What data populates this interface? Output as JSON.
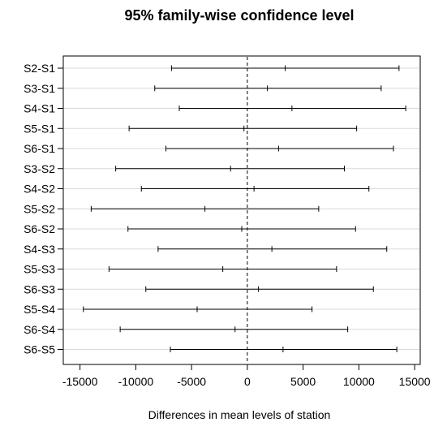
{
  "chart_data": {
    "type": "interval",
    "title": "95% family-wise confidence level",
    "xlabel": "Differences in mean levels of station",
    "ylabel": "",
    "xlim": [
      -16500,
      15500
    ],
    "xticks": [
      -15000,
      -10000,
      -5000,
      0,
      5000,
      10000,
      15000
    ],
    "xtick_labels": [
      "-15000",
      "-10000",
      "-5000",
      "0",
      "5000",
      "10000",
      "15000"
    ],
    "reference_line": 0,
    "grid": true,
    "comparisons": [
      {
        "label": "S2-S1",
        "lwr": -6800,
        "diff": 3400,
        "upr": 13600
      },
      {
        "label": "S3-S1",
        "lwr": -8300,
        "diff": 1800,
        "upr": 12000
      },
      {
        "label": "S4-S1",
        "lwr": -6100,
        "diff": 4000,
        "upr": 14200
      },
      {
        "label": "S5-S1",
        "lwr": -10600,
        "diff": -300,
        "upr": 9800
      },
      {
        "label": "S6-S1",
        "lwr": -7300,
        "diff": 2800,
        "upr": 13100
      },
      {
        "label": "S3-S2",
        "lwr": -11800,
        "diff": -1500,
        "upr": 8700
      },
      {
        "label": "S4-S2",
        "lwr": -9500,
        "diff": 600,
        "upr": 10900
      },
      {
        "label": "S5-S2",
        "lwr": -14000,
        "diff": -3800,
        "upr": 6400
      },
      {
        "label": "S6-S2",
        "lwr": -10700,
        "diff": -500,
        "upr": 9700
      },
      {
        "label": "S4-S3",
        "lwr": -8000,
        "diff": 2200,
        "upr": 12500
      },
      {
        "label": "S5-S3",
        "lwr": -12400,
        "diff": -2200,
        "upr": 8000
      },
      {
        "label": "S6-S3",
        "lwr": -9100,
        "diff": 1000,
        "upr": 11300
      },
      {
        "label": "S5-S4",
        "lwr": -14700,
        "diff": -4500,
        "upr": 5800
      },
      {
        "label": "S6-S4",
        "lwr": -11400,
        "diff": -1100,
        "upr": 9000
      },
      {
        "label": "S6-S5",
        "lwr": -6900,
        "diff": 3200,
        "upr": 13400
      }
    ]
  }
}
